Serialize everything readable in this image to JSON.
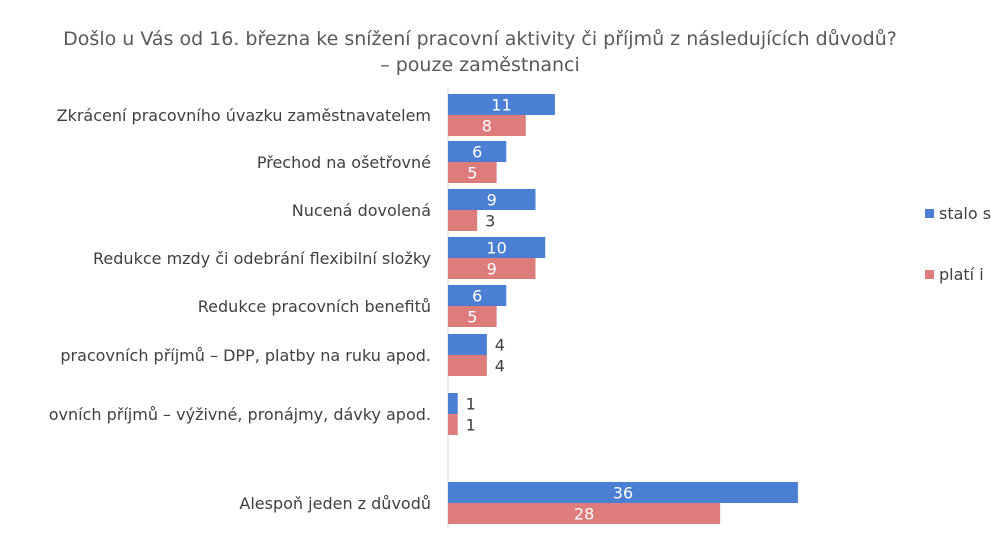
{
  "chart_data": {
    "type": "bar",
    "orientation": "horizontal",
    "title": "Došlo u Vás od 16. března ke snížení pracovní aktivity či příjmů z následujících důvodů?",
    "subtitle": "– pouze zaměstnanci",
    "categories": [
      "Zkrácení pracovního úvazku zaměstnavatelem",
      "Přechod na ošetřovné",
      "Nucená dovolená",
      "Redukce mzdy či odebrání flexibilní složky",
      "Redukce pracovních benefitů",
      "pracovních příjmů – DPP, platby na ruku apod.",
      "ovních příjmů – výživné, pronájmy, dávky apod.",
      "Alespoň jeden z důvodů"
    ],
    "series": [
      {
        "name": "stalo s",
        "color": "#4a7fd4",
        "values": [
          11,
          6,
          9,
          10,
          6,
          4,
          1,
          36
        ]
      },
      {
        "name": "platí i",
        "color": "#de7c7c",
        "values": [
          8,
          5,
          3,
          9,
          5,
          4,
          1,
          28
        ]
      }
    ],
    "xlim": [
      0,
      36
    ],
    "grid": false,
    "legend_position": "right",
    "xlabel": "",
    "ylabel": ""
  }
}
